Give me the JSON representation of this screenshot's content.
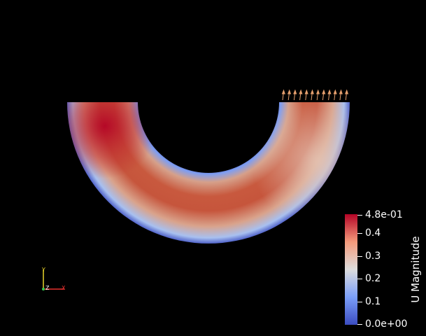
{
  "viewport": {
    "background": "#000000",
    "field": "U Magnitude",
    "shape": "half-annulus (U-bend)",
    "velocity_glyphs": "arrow-glyphs at inlet"
  },
  "colorbar": {
    "title": "U Magnitude",
    "ticks": [
      {
        "label": "4.8e-01",
        "value": 0.48
      },
      {
        "label": "0.4",
        "value": 0.4
      },
      {
        "label": "0.3",
        "value": 0.3
      },
      {
        "label": "0.2",
        "value": 0.2
      },
      {
        "label": "0.1",
        "value": 0.1
      },
      {
        "label": "0.0e+00",
        "value": 0.0
      }
    ],
    "range": [
      0.0,
      0.48
    ],
    "colors": {
      "max": "#b40426",
      "mid": "#dcdcdc",
      "min": "#3b4cc0"
    }
  },
  "orientation_axes": {
    "x_label": "X",
    "y_label": "Y",
    "z_label": "Z",
    "x_color": "#e8302e",
    "y_color": "#e8d22a",
    "z_color": "#33c84a"
  }
}
